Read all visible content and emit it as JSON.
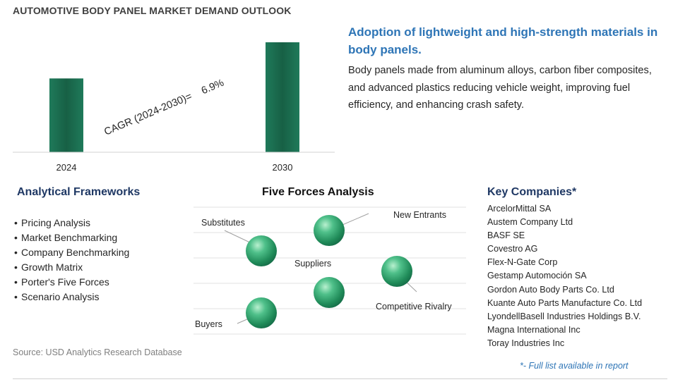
{
  "title": "AUTOMOTIVE BODY PANEL MARKET DEMAND OUTLOOK",
  "chart_data": {
    "type": "bar",
    "categories": [
      "2024",
      "2030"
    ],
    "values": [
      1.0,
      1.49
    ],
    "annotation": "CAGR (2024-2030)=    6.9%",
    "bar_color": "#1a6b4f",
    "axis_labels_visible": false,
    "grid": false
  },
  "headline": "Adoption of lightweight and high-strength materials in body panels.",
  "description": "Body panels made from aluminum alloys, carbon fiber composites, and advanced plastics reducing vehicle weight, improving fuel efficiency, and enhancing crash safety.",
  "frameworks": {
    "title": "Analytical Frameworks",
    "items": [
      "Pricing Analysis",
      "Market Benchmarking",
      "Company Benchmarking",
      "Growth Matrix",
      "Porter's Five Forces",
      "Scenario Analysis"
    ]
  },
  "five_forces": {
    "title": "Five Forces Analysis",
    "labels": {
      "substitutes": "Substitutes",
      "new_entrants": "New Entrants",
      "suppliers": "Suppliers",
      "competitive_rivalry": "Competitive Rivalry",
      "buyers": "Buyers"
    },
    "sphere_color": "#2e9e6a"
  },
  "companies": {
    "title": "Key Companies*",
    "items": [
      "ArcelorMittal SA",
      "Austem Company Ltd",
      "BASF SE",
      "Covestro AG",
      "Flex-N-Gate Corp",
      "Gestamp Automoción SA",
      "Gordon Auto Body Parts Co. Ltd",
      "Kuante Auto Parts Manufacture Co. Ltd",
      "LyondellBasell Industries Holdings B.V.",
      "Magna International Inc",
      "Toray Industries Inc"
    ],
    "note": "*- Full list available in report"
  },
  "source": "Source: USD Analytics Research Database"
}
